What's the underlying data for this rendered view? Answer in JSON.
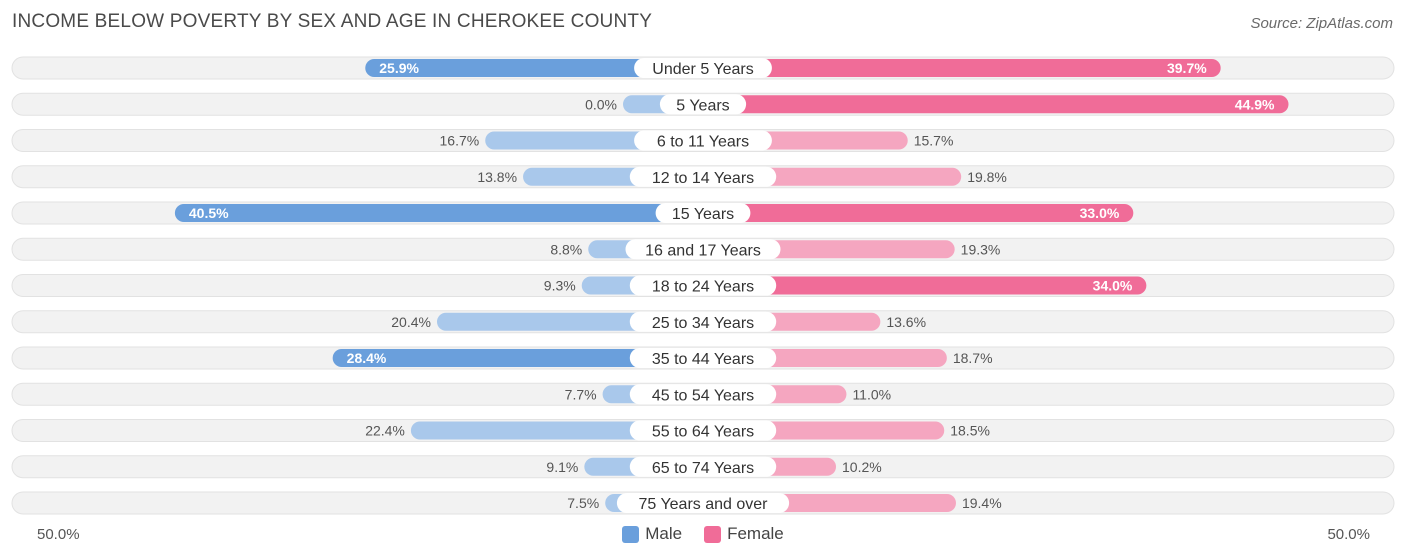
{
  "header": {
    "title": "INCOME BELOW POVERTY BY SEX AND AGE IN CHEROKEE COUNTY",
    "source": "Source: ZipAtlas.com"
  },
  "axis": {
    "left_label": "50.0%",
    "right_label": "50.0%"
  },
  "legend": {
    "male": "Male",
    "female": "Female"
  },
  "colors": {
    "male_strong": "#6a9fdc",
    "male_light": "#a9c8eb",
    "female_strong": "#f06c98",
    "female_light": "#f5a6c0",
    "row_bg": "#f2f2f2",
    "row_border": "#e2e2e2"
  },
  "chart_data": {
    "type": "bar",
    "orientation": "horizontal-diverging",
    "title": "INCOME BELOW POVERTY BY SEX AND AGE IN CHEROKEE COUNTY",
    "xlim": [
      -50,
      50
    ],
    "unit": "%",
    "categories": [
      "Under 5 Years",
      "5 Years",
      "6 to 11 Years",
      "12 to 14 Years",
      "15 Years",
      "16 and 17 Years",
      "18 to 24 Years",
      "25 to 34 Years",
      "35 to 44 Years",
      "45 to 54 Years",
      "55 to 64 Years",
      "65 to 74 Years",
      "75 Years and over"
    ],
    "series": [
      {
        "name": "Male",
        "values": [
          25.9,
          0.0,
          16.7,
          13.8,
          40.5,
          8.8,
          9.3,
          20.4,
          28.4,
          7.7,
          22.4,
          9.1,
          7.5
        ],
        "labels": [
          "25.9%",
          "0.0%",
          "16.7%",
          "13.8%",
          "40.5%",
          "8.8%",
          "9.3%",
          "20.4%",
          "28.4%",
          "7.7%",
          "22.4%",
          "9.1%",
          "7.5%"
        ]
      },
      {
        "name": "Female",
        "values": [
          39.7,
          44.9,
          15.7,
          19.8,
          33.0,
          19.3,
          34.0,
          13.6,
          18.7,
          11.0,
          18.5,
          10.2,
          19.4
        ],
        "labels": [
          "39.7%",
          "44.9%",
          "15.7%",
          "19.8%",
          "33.0%",
          "19.3%",
          "34.0%",
          "13.6%",
          "18.7%",
          "11.0%",
          "18.5%",
          "10.2%",
          "19.4%"
        ]
      }
    ]
  }
}
